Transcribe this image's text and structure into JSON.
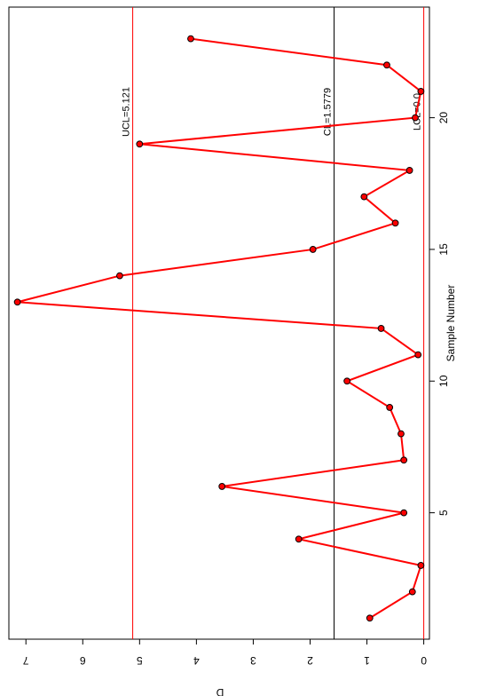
{
  "chart_data": {
    "type": "line",
    "xlabel": "Sample Number",
    "ylabel": "D",
    "xlim": [
      0.2,
      24.2
    ],
    "ylim": [
      -0.1,
      7.3
    ],
    "x_ticks": [
      5,
      10,
      15,
      20
    ],
    "y_ticks": [
      0,
      1,
      2,
      3,
      4,
      5,
      6,
      7
    ],
    "x": [
      1,
      2,
      3,
      4,
      5,
      6,
      7,
      8,
      9,
      10,
      11,
      12,
      13,
      14,
      15,
      16,
      17,
      18,
      19,
      20,
      21,
      22,
      23
    ],
    "series": [
      {
        "values": [
          0.95,
          0.2,
          0.05,
          2.2,
          0.35,
          3.55,
          0.35,
          0.4,
          0.6,
          1.35,
          0.1,
          0.75,
          7.15,
          5.35,
          1.95,
          0.5,
          1.05,
          0.25,
          5.0,
          0.15,
          0.05,
          0.65,
          4.1
        ],
        "color": "#ff0000"
      }
    ],
    "control_limits": [
      {
        "label": "UCL=5.121",
        "value": 5.121,
        "color": "#ff0000"
      },
      {
        "label": "CL=1.5779",
        "value": 1.5779,
        "color": "#000000"
      },
      {
        "label": "LCL=0.0",
        "value": 0.0,
        "color": "#ff0000"
      }
    ],
    "grid": false,
    "orientation": "rotated-90-clockwise"
  }
}
